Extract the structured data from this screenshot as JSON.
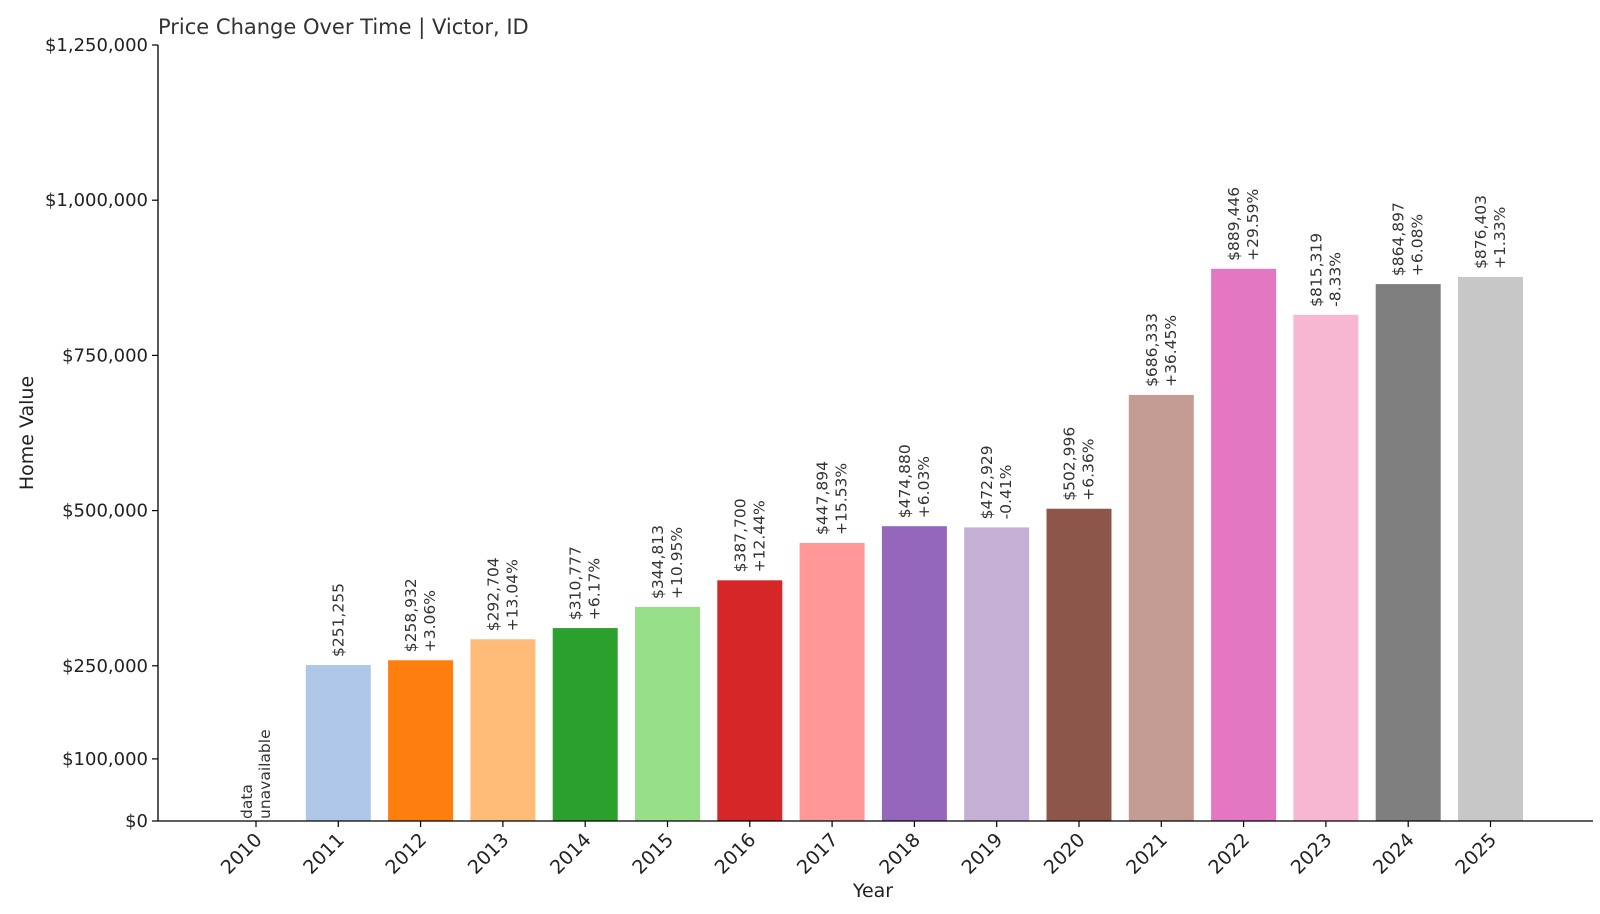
{
  "chart_data": {
    "type": "bar",
    "title": "Price Change Over Time | Victor, ID",
    "xlabel": "Year",
    "ylabel": "Home Value",
    "ylim": [
      0,
      1250000
    ],
    "yticks": [
      {
        "value": 0,
        "label": "$0"
      },
      {
        "value": 100000,
        "label": "$100,000"
      },
      {
        "value": 250000,
        "label": "$250,000"
      },
      {
        "value": 500000,
        "label": "$500,000"
      },
      {
        "value": 750000,
        "label": "$750,000"
      },
      {
        "value": 1000000,
        "label": "$1,000,000"
      },
      {
        "value": 1250000,
        "label": "$1,250,000"
      }
    ],
    "unavailable_note": [
      "data",
      "unavailable"
    ],
    "bars": [
      {
        "year": "2010",
        "value": null,
        "value_label": "",
        "change_label": "",
        "color": "#1f77b4"
      },
      {
        "year": "2011",
        "value": 251255,
        "value_label": "$251,255",
        "change_label": "",
        "color": "#aec7e8"
      },
      {
        "year": "2012",
        "value": 258932,
        "value_label": "$258,932",
        "change_label": "+3.06%",
        "color": "#ff7f0e"
      },
      {
        "year": "2013",
        "value": 292704,
        "value_label": "$292,704",
        "change_label": "+13.04%",
        "color": "#ffbb78"
      },
      {
        "year": "2014",
        "value": 310777,
        "value_label": "$310,777",
        "change_label": "+6.17%",
        "color": "#2ca02c"
      },
      {
        "year": "2015",
        "value": 344813,
        "value_label": "$344,813",
        "change_label": "+10.95%",
        "color": "#98df8a"
      },
      {
        "year": "2016",
        "value": 387700,
        "value_label": "$387,700",
        "change_label": "+12.44%",
        "color": "#d62728"
      },
      {
        "year": "2017",
        "value": 447894,
        "value_label": "$447,894",
        "change_label": "+15.53%",
        "color": "#ff9896"
      },
      {
        "year": "2018",
        "value": 474880,
        "value_label": "$474,880",
        "change_label": "+6.03%",
        "color": "#9467bd"
      },
      {
        "year": "2019",
        "value": 472929,
        "value_label": "$472,929",
        "change_label": "-0.41%",
        "color": "#c5b0d5"
      },
      {
        "year": "2020",
        "value": 502996,
        "value_label": "$502,996",
        "change_label": "+6.36%",
        "color": "#8c564b"
      },
      {
        "year": "2021",
        "value": 686333,
        "value_label": "$686,333",
        "change_label": "+36.45%",
        "color": "#c49c94"
      },
      {
        "year": "2022",
        "value": 889446,
        "value_label": "$889,446",
        "change_label": "+29.59%",
        "color": "#e377c2"
      },
      {
        "year": "2023",
        "value": 815319,
        "value_label": "$815,319",
        "change_label": "-8.33%",
        "color": "#f7b6d2"
      },
      {
        "year": "2024",
        "value": 864897,
        "value_label": "$864,897",
        "change_label": "+6.08%",
        "color": "#7f7f7f"
      },
      {
        "year": "2025",
        "value": 876403,
        "value_label": "$876,403",
        "change_label": "+1.33%",
        "color": "#c7c7c7"
      }
    ]
  }
}
